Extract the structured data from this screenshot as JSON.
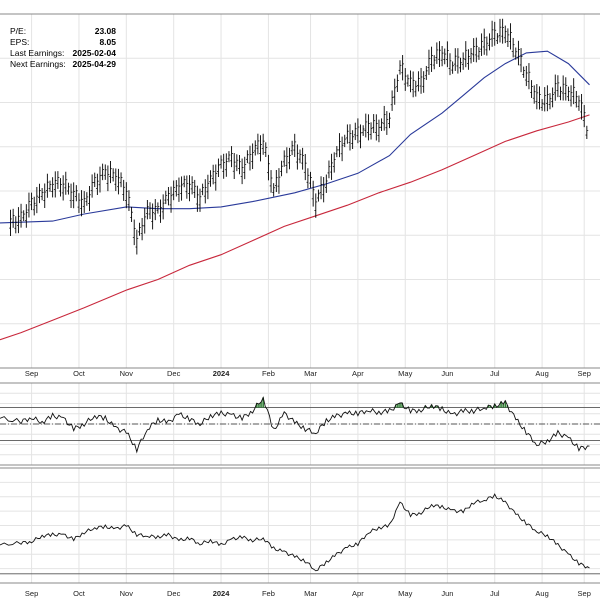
{
  "stats": [
    {
      "label": "P/E:",
      "value": "23.08"
    },
    {
      "label": "EPS:",
      "value": "8.05"
    },
    {
      "label": "Last Earnings:",
      "value": "2025-02-04"
    },
    {
      "label": "Next Earnings:",
      "value": "2025-04-29"
    }
  ],
  "x_ticks": [
    {
      "label": "Sep",
      "week": 1
    },
    {
      "label": "Oct",
      "week": 5.5
    },
    {
      "label": "Nov",
      "week": 10
    },
    {
      "label": "Dec",
      "week": 14.5
    },
    {
      "label": "2024",
      "week": 19,
      "bold": true
    },
    {
      "label": "Feb",
      "week": 23.5
    },
    {
      "label": "Mar",
      "week": 27.5
    },
    {
      "label": "Apr",
      "week": 32
    },
    {
      "label": "May",
      "week": 36.5
    },
    {
      "label": "Jun",
      "week": 40.5
    },
    {
      "label": "Jul",
      "week": 45
    },
    {
      "label": "Aug",
      "week": 49.5
    },
    {
      "label": "Sep",
      "week": 53.5
    }
  ],
  "colors": {
    "price": "#000000",
    "ma_short": "#2a3a9a",
    "ma_long": "#c8283c",
    "rsi_fill": "#2e7d32",
    "grid": "#e4e4e4",
    "panel_border": "#888888"
  },
  "chart_data": [
    {
      "type": "ohlc",
      "x_unit": "week index",
      "xlim": [
        -2,
        55
      ],
      "ylim": [
        0,
        100
      ],
      "y_reversed": false,
      "series": [
        {
          "values": [
            [
              -1,
              41
            ],
            [
              0,
              42
            ],
            [
              1,
              46
            ],
            [
              2,
              49
            ],
            [
              3,
              52
            ],
            [
              4,
              52
            ],
            [
              5,
              49
            ],
            [
              6,
              46
            ],
            [
              7,
              52
            ],
            [
              8,
              55
            ],
            [
              9,
              54
            ],
            [
              10,
              50
            ],
            [
              11,
              36
            ],
            [
              12,
              44
            ],
            [
              13,
              44
            ],
            [
              14,
              48
            ],
            [
              15,
              51
            ],
            [
              16,
              52
            ],
            [
              17,
              48
            ],
            [
              18,
              53
            ],
            [
              19,
              57
            ],
            [
              20,
              59
            ],
            [
              21,
              56
            ],
            [
              22,
              61
            ],
            [
              23,
              64
            ],
            [
              24,
              50
            ],
            [
              25,
              58
            ],
            [
              26,
              62
            ],
            [
              27,
              57
            ],
            [
              28,
              47
            ],
            [
              29,
              53
            ],
            [
              30,
              61
            ],
            [
              31,
              65
            ],
            [
              32,
              66
            ],
            [
              33,
              68
            ],
            [
              34,
              68
            ],
            [
              35,
              71
            ],
            [
              36,
              85
            ],
            [
              37,
              80
            ],
            [
              38,
              80
            ],
            [
              39,
              87
            ],
            [
              40,
              89
            ],
            [
              41,
              86
            ],
            [
              42,
              87
            ],
            [
              43,
              89
            ],
            [
              44,
              91
            ],
            [
              45,
              94
            ],
            [
              46,
              95
            ],
            [
              47,
              90
            ],
            [
              48,
              83
            ],
            [
              49,
              76
            ],
            [
              50,
              75
            ],
            [
              51,
              79
            ],
            [
              52,
              78
            ],
            [
              53,
              76
            ],
            [
              54,
              65
            ]
          ]
        },
        {
          "values": [
            [
              -2,
              41
            ],
            [
              3,
              41.5
            ],
            [
              6,
              43.5
            ],
            [
              10,
              45.5
            ],
            [
              13,
              45
            ],
            [
              16,
              45
            ],
            [
              19,
              45.5
            ],
            [
              22,
              47
            ],
            [
              26,
              49.5
            ],
            [
              29,
              52
            ],
            [
              32,
              55
            ],
            [
              35,
              60
            ],
            [
              37,
              66
            ],
            [
              40,
              72
            ],
            [
              42,
              77
            ],
            [
              44,
              82
            ],
            [
              46,
              86
            ],
            [
              48,
              89
            ],
            [
              50,
              89.5
            ],
            [
              52,
              86
            ],
            [
              54,
              80
            ]
          ]
        },
        {
          "values": [
            [
              -2,
              8
            ],
            [
              0,
              10
            ],
            [
              3,
              13.5
            ],
            [
              6,
              17
            ],
            [
              10,
              22
            ],
            [
              13,
              25
            ],
            [
              16,
              29
            ],
            [
              19,
              32
            ],
            [
              22,
              36
            ],
            [
              25,
              40
            ],
            [
              28,
              43
            ],
            [
              31,
              46
            ],
            [
              34,
              49.5
            ],
            [
              37,
              52.5
            ],
            [
              40,
              56
            ],
            [
              43,
              60
            ],
            [
              46,
              64
            ],
            [
              49,
              67
            ],
            [
              52,
              69.5
            ],
            [
              54,
              71.5
            ]
          ]
        }
      ]
    },
    {
      "type": "line",
      "x_unit": "week index",
      "xlim": [
        -2,
        55
      ],
      "ylim": [
        0,
        100
      ],
      "reference_lines": [
        70,
        50,
        30
      ],
      "series": [
        {
          "values": [
            [
              -2,
              57
            ],
            [
              0,
              53
            ],
            [
              1,
              58
            ],
            [
              2,
              52
            ],
            [
              3,
              60
            ],
            [
              4,
              57
            ],
            [
              5,
              44
            ],
            [
              6,
              50
            ],
            [
              7,
              60
            ],
            [
              8,
              57
            ],
            [
              9,
              45
            ],
            [
              10,
              40
            ],
            [
              11,
              19
            ],
            [
              12,
              44
            ],
            [
              13,
              55
            ],
            [
              14,
              52
            ],
            [
              15,
              62
            ],
            [
              16,
              56
            ],
            [
              17,
              50
            ],
            [
              18,
              60
            ],
            [
              19,
              63
            ],
            [
              20,
              61
            ],
            [
              21,
              57
            ],
            [
              22,
              66
            ],
            [
              23,
              82
            ],
            [
              24,
              42
            ],
            [
              25,
              63
            ],
            [
              26,
              52
            ],
            [
              27,
              44
            ],
            [
              28,
              39
            ],
            [
              29,
              54
            ],
            [
              30,
              60
            ],
            [
              31,
              63
            ],
            [
              32,
              63
            ],
            [
              33,
              67
            ],
            [
              34,
              64
            ],
            [
              35,
              66
            ],
            [
              36,
              75
            ],
            [
              37,
              66
            ],
            [
              38,
              67
            ],
            [
              39,
              73
            ],
            [
              40,
              68
            ],
            [
              41,
              61
            ],
            [
              42,
              66
            ],
            [
              43,
              66
            ],
            [
              44,
              70
            ],
            [
              45,
              72
            ],
            [
              46,
              76
            ],
            [
              47,
              56
            ],
            [
              48,
              40
            ],
            [
              49,
              25
            ],
            [
              50,
              29
            ],
            [
              51,
              39
            ],
            [
              52,
              33
            ],
            [
              53,
              20
            ],
            [
              54,
              23
            ]
          ]
        }
      ]
    },
    {
      "type": "line",
      "x_unit": "week index",
      "xlim": [
        -2,
        55
      ],
      "ylim": [
        0,
        100
      ],
      "reference_lines": [
        8
      ],
      "series": [
        {
          "values": [
            [
              -2,
              33
            ],
            [
              0,
              35
            ],
            [
              1,
              36
            ],
            [
              2,
              41
            ],
            [
              3,
              42
            ],
            [
              4,
              42
            ],
            [
              5,
              38
            ],
            [
              6,
              44
            ],
            [
              7,
              48
            ],
            [
              8,
              49
            ],
            [
              9,
              47
            ],
            [
              10,
              50
            ],
            [
              11,
              42
            ],
            [
              12,
              41
            ],
            [
              13,
              40
            ],
            [
              14,
              42
            ],
            [
              15,
              37
            ],
            [
              16,
              39
            ],
            [
              17,
              34
            ],
            [
              18,
              37
            ],
            [
              19,
              33
            ],
            [
              20,
              38
            ],
            [
              21,
              40
            ],
            [
              22,
              37
            ],
            [
              23,
              39
            ],
            [
              24,
              30
            ],
            [
              25,
              27
            ],
            [
              26,
              23
            ],
            [
              27,
              19
            ],
            [
              28,
              11
            ],
            [
              29,
              18
            ],
            [
              30,
              25
            ],
            [
              31,
              31
            ],
            [
              32,
              34
            ],
            [
              33,
              44
            ],
            [
              34,
              48
            ],
            [
              35,
              50
            ],
            [
              36,
              70
            ],
            [
              37,
              59
            ],
            [
              38,
              61
            ],
            [
              39,
              68
            ],
            [
              40,
              66
            ],
            [
              41,
              63
            ],
            [
              42,
              62
            ],
            [
              43,
              70
            ],
            [
              44,
              72
            ],
            [
              45,
              76
            ],
            [
              46,
              70
            ],
            [
              47,
              60
            ],
            [
              48,
              52
            ],
            [
              49,
              45
            ],
            [
              50,
              41
            ],
            [
              51,
              33
            ],
            [
              52,
              25
            ],
            [
              53,
              17
            ],
            [
              54,
              13
            ]
          ]
        }
      ]
    }
  ]
}
